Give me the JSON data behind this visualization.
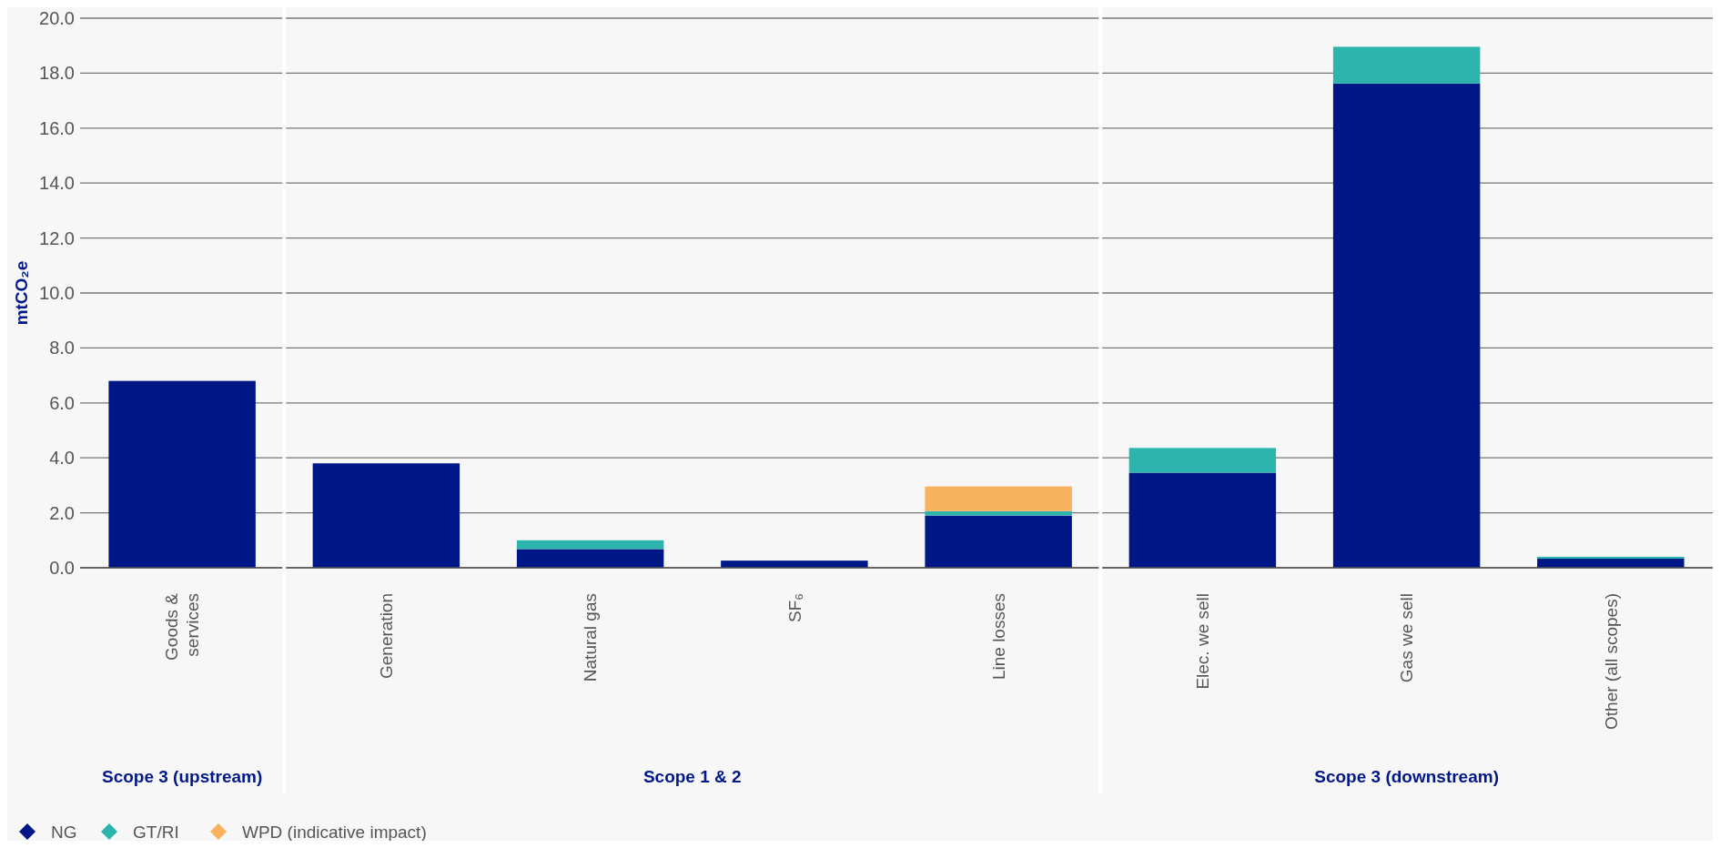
{
  "chart_data": {
    "type": "bar",
    "stacked": true,
    "ylabel": "mtCO₂e",
    "categories": [
      "Goods & services",
      "Generation",
      "Natural gas",
      "SF₆",
      "Line losses",
      "Elec. we sell",
      "Gas we sell",
      "Other (all scopes)"
    ],
    "series": [
      {
        "name": "NG",
        "color": "#001887",
        "values": [
          6.8,
          3.8,
          0.68,
          0.26,
          1.9,
          3.46,
          17.62,
          0.33
        ]
      },
      {
        "name": "GT/RI",
        "color": "#2db5ad",
        "values": [
          null,
          null,
          0.32,
          null,
          0.16,
          0.9,
          1.34,
          0.07
        ]
      },
      {
        "name": "WPD (indicative impact)",
        "color": "#f8b15d",
        "values": [
          null,
          null,
          null,
          null,
          0.9,
          null,
          null,
          null
        ]
      }
    ],
    "ylim": [
      0,
      20
    ],
    "yticks": [
      {
        "value": 0,
        "label": "0.0"
      },
      {
        "value": 2,
        "label": "2.0"
      },
      {
        "value": 4,
        "label": "4.0"
      },
      {
        "value": 6,
        "label": "6.0"
      },
      {
        "value": 8,
        "label": "8.0"
      },
      {
        "value": 10,
        "label": "10.0"
      },
      {
        "value": 12,
        "label": "12.0"
      },
      {
        "value": 14,
        "label": "14.0"
      },
      {
        "value": 16,
        "label": "16.0"
      },
      {
        "value": 18,
        "label": "18.0"
      },
      {
        "value": 20,
        "label": "20.0"
      }
    ],
    "grid": "y",
    "legend": "bottom left",
    "marker": "diamond",
    "annotations": [
      "Scope 3 (upstream)",
      "Scope 1 & 2",
      "Scope 3 (downstream)"
    ]
  }
}
